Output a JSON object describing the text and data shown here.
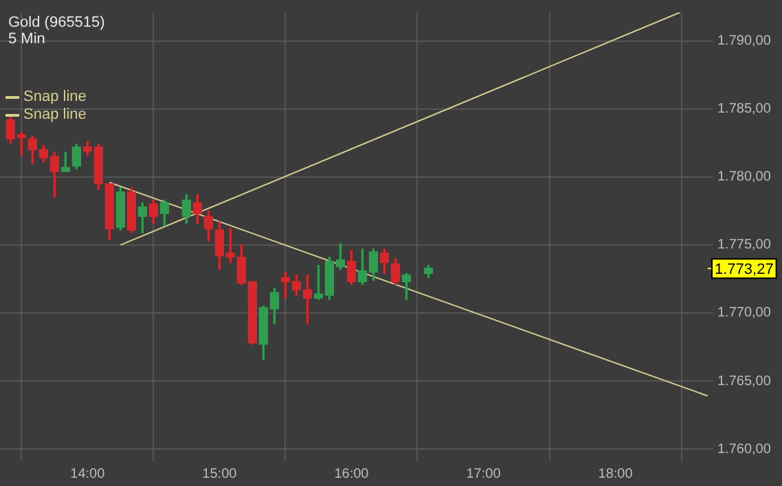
{
  "chart_data": {
    "type": "candlestick",
    "title": "Gold (965515)",
    "subtitle": "5 Min",
    "x": [
      13.4167,
      13.5,
      13.5833,
      13.6667,
      13.75,
      13.8333,
      13.9167,
      14,
      14.0833,
      14.1667,
      14.25,
      14.3333,
      14.4167,
      14.5,
      14.5833,
      14.75,
      14.8333,
      14.9167,
      15,
      15.0833,
      15.1667,
      15.25,
      15.3333,
      15.4167,
      15.5,
      15.5833,
      15.6667,
      15.75,
      15.8333,
      15.9167,
      16,
      16.0833,
      16.1667,
      16.25,
      16.3333,
      16.4167,
      16.5833
    ],
    "ohlc": [
      [
        1784.2,
        1784.4,
        1782.5,
        1782.8
      ],
      [
        1783.1,
        1783.3,
        1781.6,
        1782.9
      ],
      [
        1782.8,
        1783.0,
        1781.0,
        1782.0
      ],
      [
        1782.0,
        1782.3,
        1781.1,
        1781.4
      ],
      [
        1781.5,
        1781.8,
        1778.5,
        1780.4
      ],
      [
        1780.4,
        1781.8,
        1780.4,
        1780.7
      ],
      [
        1780.8,
        1782.4,
        1780.6,
        1782.2
      ],
      [
        1782.2,
        1782.6,
        1781.6,
        1781.9
      ],
      [
        1782.2,
        1782.4,
        1779.1,
        1779.5
      ],
      [
        1779.5,
        1779.5,
        1775.4,
        1776.2
      ],
      [
        1776.3,
        1779.2,
        1776.1,
        1778.9
      ],
      [
        1778.9,
        1779.2,
        1775.9,
        1776.1
      ],
      [
        1777.1,
        1778.1,
        1775.9,
        1777.8
      ],
      [
        1778.0,
        1778.3,
        1776.6,
        1777.1
      ],
      [
        1777.3,
        1778.3,
        1776.4,
        1778.1
      ],
      [
        1777.1,
        1778.7,
        1776.6,
        1778.3
      ],
      [
        1778.1,
        1778.7,
        1776.6,
        1777.3
      ],
      [
        1777.1,
        1777.5,
        1775.3,
        1776.2
      ],
      [
        1776.1,
        1776.7,
        1773.2,
        1774.2
      ],
      [
        1774.4,
        1776.2,
        1773.7,
        1774.1
      ],
      [
        1774.1,
        1775.0,
        1772.1,
        1772.2
      ],
      [
        1772.3,
        1772.3,
        1767.7,
        1767.8
      ],
      [
        1767.7,
        1770.5,
        1766.6,
        1770.4
      ],
      [
        1770.3,
        1771.8,
        1769.2,
        1771.5
      ],
      [
        1772.6,
        1773.0,
        1771.1,
        1772.3
      ],
      [
        1772.3,
        1772.8,
        1771.3,
        1771.7
      ],
      [
        1771.7,
        1772.8,
        1769.2,
        1771.1
      ],
      [
        1771.1,
        1773.5,
        1771.0,
        1771.4
      ],
      [
        1771.3,
        1774.1,
        1771.0,
        1773.8
      ],
      [
        1773.4,
        1775.1,
        1773.2,
        1773.9
      ],
      [
        1773.8,
        1774.6,
        1772.1,
        1772.3
      ],
      [
        1772.3,
        1774.7,
        1772.1,
        1773.1
      ],
      [
        1773.0,
        1774.7,
        1772.4,
        1774.5
      ],
      [
        1774.4,
        1774.7,
        1772.9,
        1773.7
      ],
      [
        1773.6,
        1774.0,
        1772.1,
        1772.3
      ],
      [
        1772.3,
        1772.9,
        1771.0,
        1772.8
      ],
      [
        1772.9,
        1773.5,
        1772.6,
        1773.3
      ]
    ],
    "colors": [
      "#d9262b",
      "#d9262b",
      "#d9262b",
      "#d9262b",
      "#d9262b",
      "#2e9e4f",
      "#2e9e4f",
      "#d9262b",
      "#d9262b",
      "#d9262b",
      "#2e9e4f",
      "#d9262b",
      "#2e9e4f",
      "#d9262b",
      "#2e9e4f",
      "#2e9e4f",
      "#d9262b",
      "#d9262b",
      "#d9262b",
      "#d9262b",
      "#d9262b",
      "#d9262b",
      "#2e9e4f",
      "#2e9e4f",
      "#d9262b",
      "#d9262b",
      "#d9262b",
      "#2e9e4f",
      "#2e9e4f",
      "#2e9e4f",
      "#d9262b",
      "#2e9e4f",
      "#2e9e4f",
      "#d9262b",
      "#d9262b",
      "#2e9e4f",
      "#2e9e4f"
    ],
    "series": [
      {
        "name": "Snap line",
        "type": "line",
        "color": "#d6cf8e",
        "x": [
          14.1667,
          18.7
        ],
        "values": [
          1779.6,
          1763.9
        ]
      },
      {
        "name": "Snap line",
        "type": "line",
        "color": "#d6cf8e",
        "x": [
          14.25,
          18.49
        ],
        "values": [
          1775.0,
          1792.1
        ]
      }
    ],
    "xlim": [
      13.337,
      18.7
    ],
    "xticks": [
      {
        "value": 14,
        "label": "14:00"
      },
      {
        "value": 15,
        "label": "15:00"
      },
      {
        "value": 16,
        "label": "16:00"
      },
      {
        "value": 17,
        "label": "17:00"
      },
      {
        "value": 18,
        "label": "18:00"
      }
    ],
    "ylim": [
      1759.4,
      1792.1
    ],
    "yticks": [
      {
        "value": 1760,
        "label": "1.760,00"
      },
      {
        "value": 1765,
        "label": "1.765,00"
      },
      {
        "value": 1770,
        "label": "1.770,00"
      },
      {
        "value": 1775,
        "label": "1.775,00"
      },
      {
        "value": 1780,
        "label": "1.780,00"
      },
      {
        "value": 1785,
        "label": "1.785,00"
      },
      {
        "value": 1790,
        "label": "1.790,00"
      }
    ],
    "ref_lines": [
      {
        "axis": "y",
        "value": 1773.27,
        "label": "1.773,27",
        "color": "#ffff00"
      }
    ],
    "grid": true,
    "legend": "top left"
  }
}
